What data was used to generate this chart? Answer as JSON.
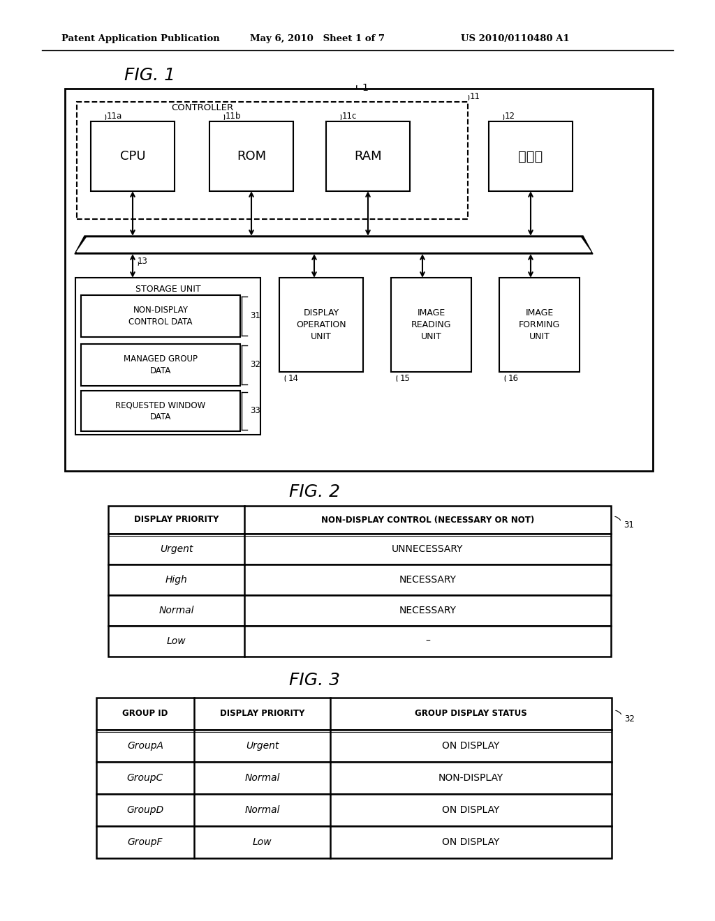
{
  "header_left": "Patent Application Publication",
  "header_mid": "May 6, 2010   Sheet 1 of 7",
  "header_right": "US 2010/0110480 A1",
  "fig1_title": "FIG. 1",
  "fig2_title": "FIG. 2",
  "fig3_title": "FIG. 3",
  "bg_color": "#ffffff",
  "line_color": "#000000",
  "fig2_headers": [
    "DISPLAY PRIORITY",
    "NON-DISPLAY CONTROL (NECESSARY OR NOT)"
  ],
  "fig2_rows": [
    [
      "Urgent",
      "UNNECESSARY"
    ],
    [
      "High",
      "NECESSARY"
    ],
    [
      "Normal",
      "NECESSARY"
    ],
    [
      "Low",
      "–"
    ]
  ],
  "fig3_headers": [
    "GROUP ID",
    "DISPLAY PRIORITY",
    "GROUP DISPLAY STATUS"
  ],
  "fig3_rows": [
    [
      "GroupA",
      "Urgent",
      "ON DISPLAY"
    ],
    [
      "GroupC",
      "Normal",
      "NON-DISPLAY"
    ],
    [
      "GroupD",
      "Normal",
      "ON DISPLAY"
    ],
    [
      "GroupF",
      "Low",
      "ON DISPLAY"
    ]
  ]
}
